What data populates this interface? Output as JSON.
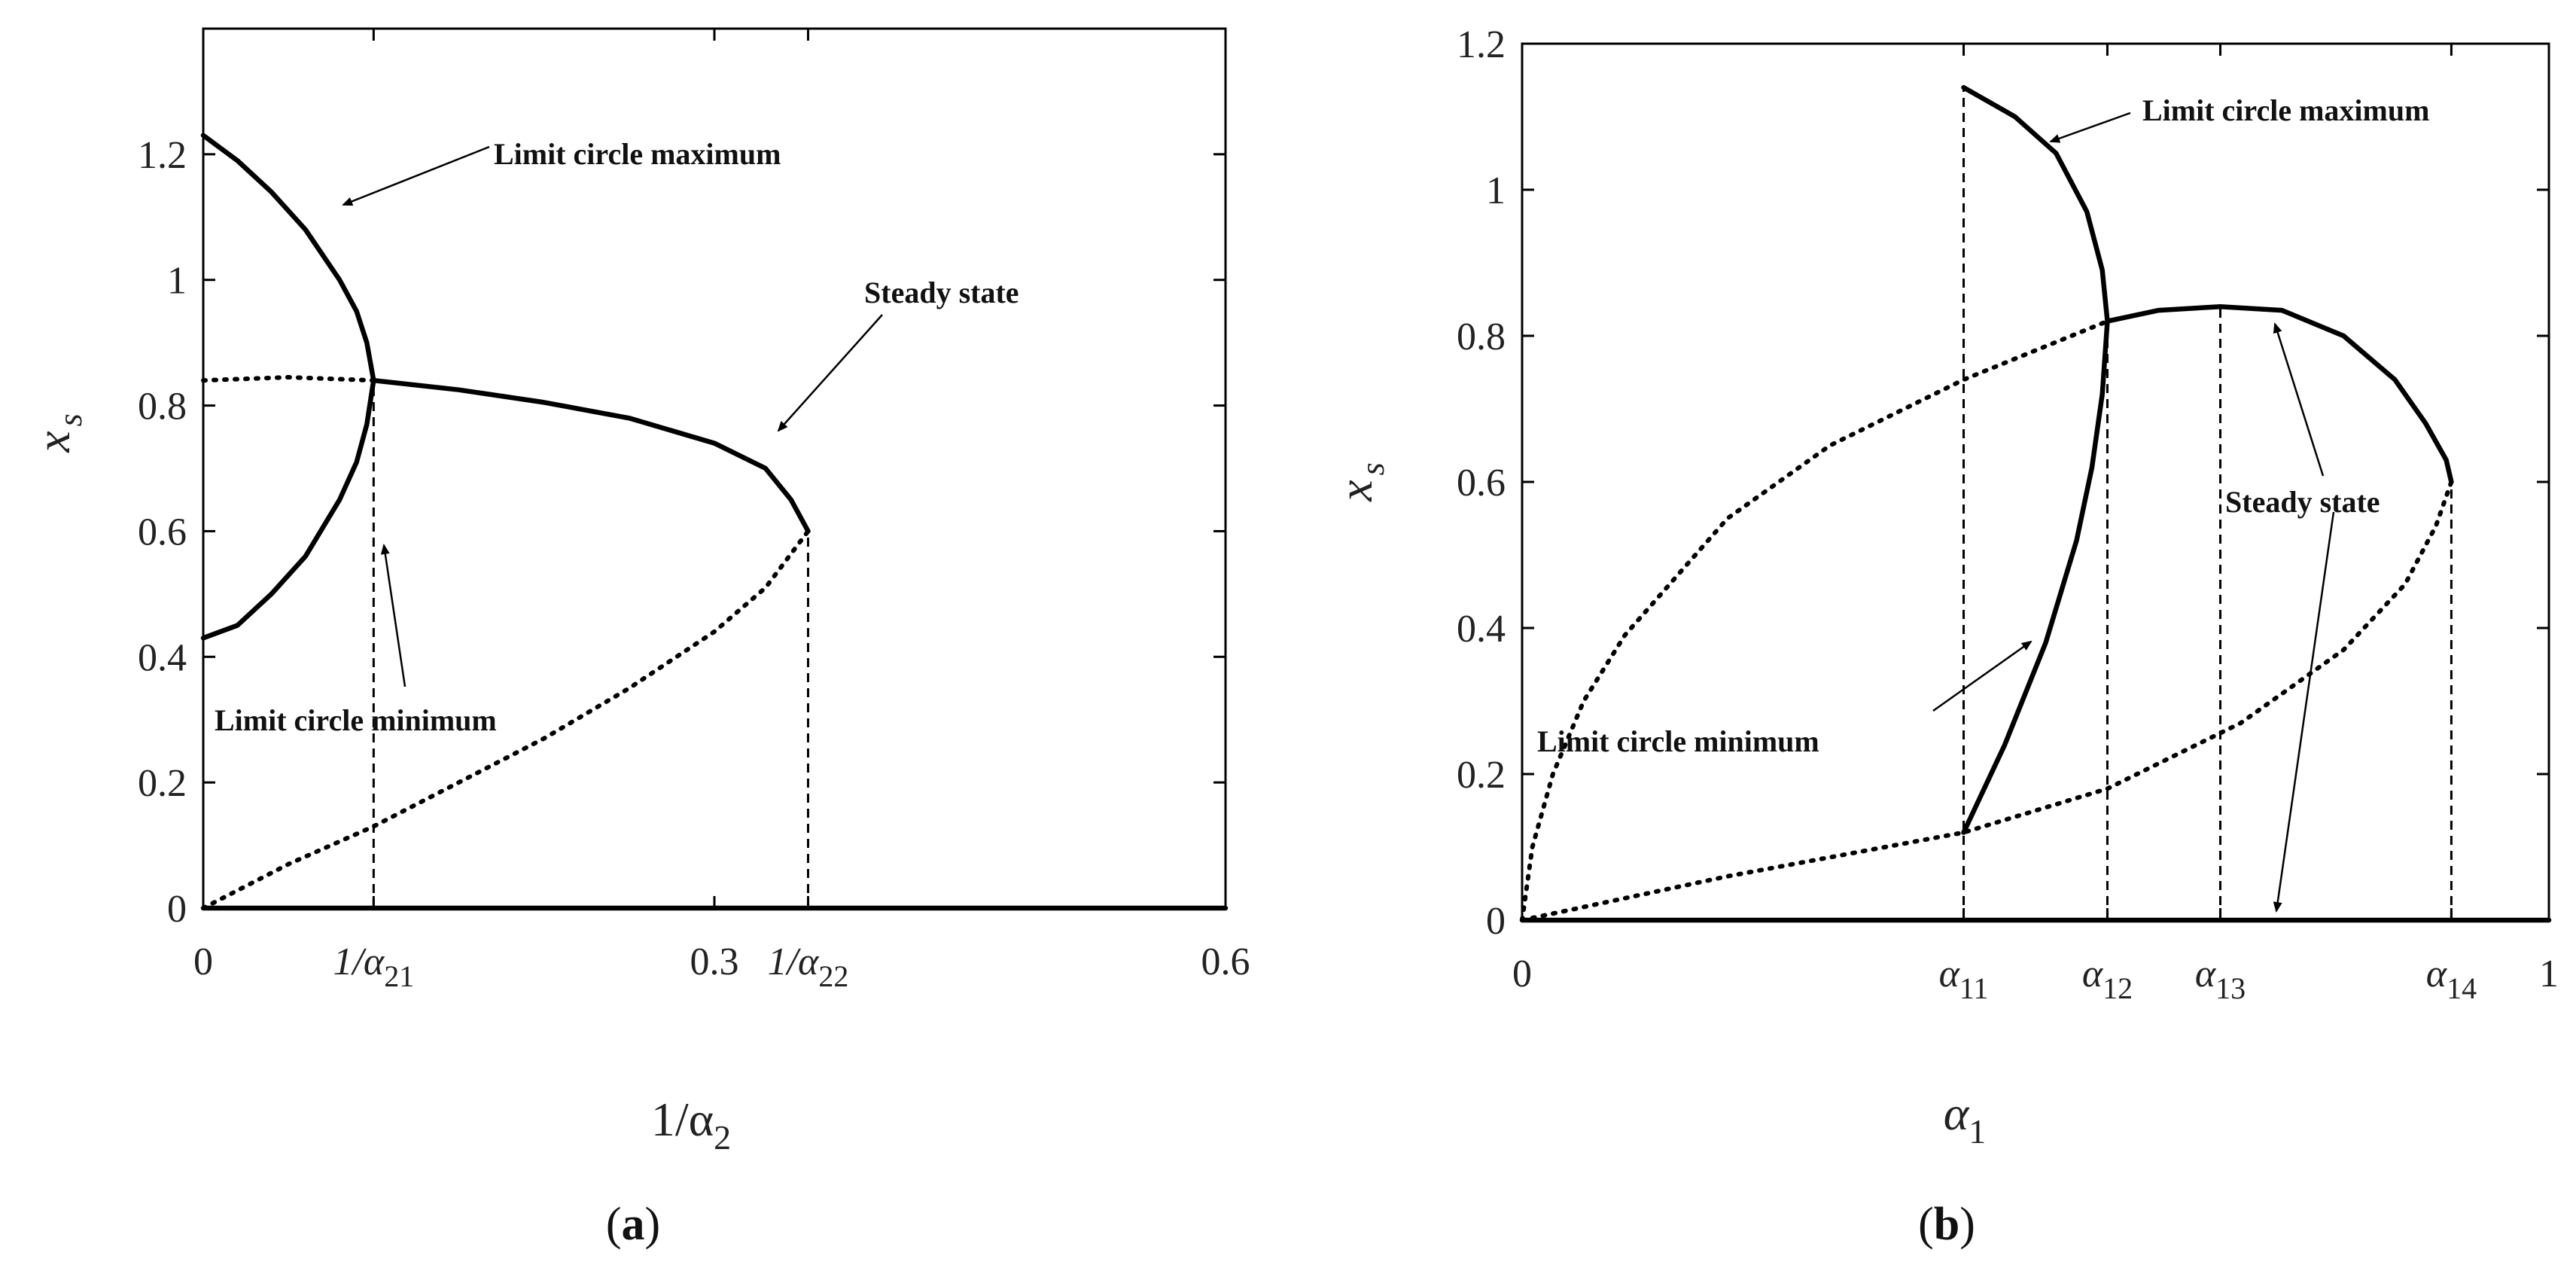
{
  "colors": {
    "ink": "#000000",
    "background": "#ffffff"
  },
  "panels": [
    {
      "caption": "(a)",
      "caption_letter": "a",
      "ylabel": "x",
      "ylabel_sub": "s",
      "xlabel": "1/α",
      "xlabel_sub": "2",
      "yticks": [
        {
          "v": 0,
          "label": "0"
        },
        {
          "v": 0.2,
          "label": "0.2"
        },
        {
          "v": 0.4,
          "label": "0.4"
        },
        {
          "v": 0.6,
          "label": "0.6"
        },
        {
          "v": 0.8,
          "label": "0.8"
        },
        {
          "v": 1,
          "label": "1"
        },
        {
          "v": 1.2,
          "label": "1.2"
        }
      ],
      "xticks": [
        {
          "v": 0,
          "label": "0"
        },
        {
          "v": 0.1,
          "label": "1/α",
          "sub": "21"
        },
        {
          "v": 0.3,
          "label": "0.3"
        },
        {
          "v": 0.355,
          "label": "1/α",
          "sub": "22"
        },
        {
          "v": 0.6,
          "label": "0.6"
        }
      ],
      "annotations": [
        {
          "text": "Limit circle maximum"
        },
        {
          "text": "Steady state"
        },
        {
          "text": "Limit circle minimum"
        }
      ]
    },
    {
      "caption": "(b)",
      "caption_letter": "b",
      "ylabel": "x",
      "ylabel_sub": "s",
      "xlabel": "α",
      "xlabel_sub": "1",
      "yticks": [
        {
          "v": 0,
          "label": "0"
        },
        {
          "v": 0.2,
          "label": "0.2"
        },
        {
          "v": 0.4,
          "label": "0.4"
        },
        {
          "v": 0.6,
          "label": "0.6"
        },
        {
          "v": 0.8,
          "label": "0.8"
        },
        {
          "v": 1,
          "label": "1"
        },
        {
          "v": 1.2,
          "label": "1.2"
        }
      ],
      "xticks": [
        {
          "v": 0,
          "label": "0"
        },
        {
          "v": 0.43,
          "label": "α",
          "sub": "11"
        },
        {
          "v": 0.57,
          "label": "α",
          "sub": "12"
        },
        {
          "v": 0.68,
          "label": "α",
          "sub": "13"
        },
        {
          "v": 0.905,
          "label": "α",
          "sub": "14"
        },
        {
          "v": 1,
          "label": "1"
        }
      ],
      "annotations": [
        {
          "text": "Limit circle maximum"
        },
        {
          "text": "Steady state"
        },
        {
          "text": "Limit circle minimum"
        }
      ]
    }
  ],
  "chart_data": [
    {
      "type": "line",
      "xlim": [
        0,
        0.6
      ],
      "ylim": [
        0,
        1.4
      ],
      "grid": false,
      "series": [
        {
          "style": "solid",
          "x": [
            0,
            0.02,
            0.04,
            0.06,
            0.08,
            0.09,
            0.096,
            0.1
          ],
          "y": [
            1.23,
            1.19,
            1.14,
            1.08,
            1.0,
            0.95,
            0.9,
            0.84
          ]
        },
        {
          "style": "solid",
          "x": [
            0,
            0.02,
            0.04,
            0.06,
            0.08,
            0.09,
            0.096,
            0.1
          ],
          "y": [
            0.43,
            0.45,
            0.5,
            0.56,
            0.65,
            0.71,
            0.77,
            0.84
          ]
        },
        {
          "style": "dotted",
          "x": [
            0,
            0.05,
            0.1
          ],
          "y": [
            0.84,
            0.845,
            0.84
          ]
        },
        {
          "style": "solid",
          "x": [
            0.1,
            0.15,
            0.2,
            0.25,
            0.3,
            0.33,
            0.345,
            0.355
          ],
          "y": [
            0.84,
            0.825,
            0.805,
            0.78,
            0.74,
            0.7,
            0.65,
            0.6
          ]
        },
        {
          "style": "dotted",
          "x": [
            0,
            0.05,
            0.1,
            0.15,
            0.2,
            0.25,
            0.3,
            0.33,
            0.355
          ],
          "y": [
            0,
            0.07,
            0.13,
            0.2,
            0.27,
            0.35,
            0.44,
            0.51,
            0.6
          ]
        },
        {
          "style": "solid",
          "x": [
            0,
            0.6
          ],
          "y": [
            0,
            0
          ]
        }
      ],
      "vlines": [
        {
          "x": 0.1,
          "y": 0.84
        },
        {
          "x": 0.355,
          "y": 0.6
        }
      ]
    },
    {
      "type": "line",
      "xlim": [
        0,
        1
      ],
      "ylim": [
        0,
        1.2
      ],
      "grid": false,
      "series": [
        {
          "style": "solid",
          "x": [
            0.43,
            0.48,
            0.52,
            0.55,
            0.565,
            0.57
          ],
          "y": [
            1.14,
            1.1,
            1.05,
            0.97,
            0.89,
            0.82
          ]
        },
        {
          "style": "solid",
          "x": [
            0.43,
            0.47,
            0.51,
            0.54,
            0.555,
            0.565,
            0.57
          ],
          "y": [
            0.12,
            0.24,
            0.38,
            0.52,
            0.62,
            0.72,
            0.82
          ]
        },
        {
          "style": "solid",
          "x": [
            0.57,
            0.62,
            0.68,
            0.74,
            0.8,
            0.85,
            0.88,
            0.9,
            0.905
          ],
          "y": [
            0.82,
            0.835,
            0.84,
            0.835,
            0.8,
            0.74,
            0.68,
            0.63,
            0.6
          ]
        },
        {
          "style": "dotted",
          "x": [
            0,
            0.01,
            0.03,
            0.06,
            0.1,
            0.2,
            0.3,
            0.43,
            0.57
          ],
          "y": [
            0,
            0.1,
            0.2,
            0.3,
            0.39,
            0.55,
            0.65,
            0.74,
            0.82
          ]
        },
        {
          "style": "dotted",
          "x": [
            0,
            0.2,
            0.43,
            0.57,
            0.7,
            0.8,
            0.86,
            0.89,
            0.905
          ],
          "y": [
            0,
            0.06,
            0.12,
            0.18,
            0.27,
            0.37,
            0.46,
            0.54,
            0.6
          ]
        },
        {
          "style": "solid",
          "x": [
            0,
            1
          ],
          "y": [
            0,
            0
          ]
        }
      ],
      "vlines": [
        {
          "x": 0.43,
          "y": 1.14
        },
        {
          "x": 0.57,
          "y": 0.82
        },
        {
          "x": 0.68,
          "y": 0.84
        },
        {
          "x": 0.905,
          "y": 0.6
        }
      ]
    }
  ]
}
